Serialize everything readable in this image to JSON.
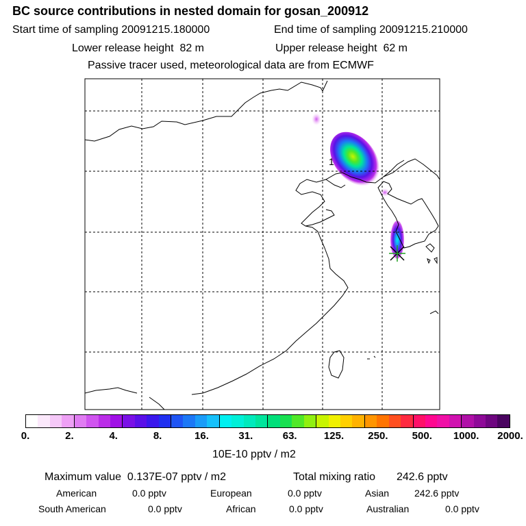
{
  "header": {
    "title": "BC  source contributions in nested domain for gosan_200912",
    "start_label": "Start time of sampling",
    "start_value": "20091215.180000",
    "end_label": "End time of sampling",
    "end_value": "20091215.210000",
    "lower_label": "Lower release height",
    "lower_value": "82 m",
    "upper_label": "Upper release height",
    "upper_value": "62 m",
    "note": "Passive tracer used, meteorological data are from ECMWF"
  },
  "map": {
    "label": "1",
    "receptor": "gosan-receptor-marker",
    "colors": {
      "land_outline": "#000000",
      "grid": "#000000"
    }
  },
  "colorbar": {
    "ticks": [
      "0.",
      "2.",
      "4.",
      "8.",
      "16.",
      "31.",
      "63.",
      "125.",
      "250.",
      "500.",
      "1000.",
      "2000."
    ],
    "colors": [
      "#ffffff",
      "#fbe8fb",
      "#f5c8f8",
      "#eea0f5",
      "#e07cf2",
      "#d055ef",
      "#bb2ee8",
      "#a010e6",
      "#7a10e6",
      "#5a10e8",
      "#3a18ec",
      "#2030f0",
      "#1f55f4",
      "#1c78f6",
      "#1a9cf8",
      "#16c0fa",
      "#00f0f0",
      "#00f0d8",
      "#00eabc",
      "#00e59c",
      "#00df7a",
      "#18e050",
      "#50e828",
      "#90f010",
      "#c8f400",
      "#f0f000",
      "#ffd000",
      "#ffb200",
      "#ff9500",
      "#ff7400",
      "#ff4f20",
      "#ff2a40",
      "#ff1068",
      "#ff0890",
      "#f010a6",
      "#d012b0",
      "#b010a8",
      "#8e0a98",
      "#6e0680",
      "#4a0460"
    ],
    "units": "10E-10 pptv / m2"
  },
  "stats": {
    "max_label": "Maximum value",
    "max_value": "0.137E-07 pptv / m2",
    "total_label": "Total mixing ratio",
    "total_value": "242.6 pptv",
    "american_label": "American",
    "american_value": "0.0 pptv",
    "european_label": "European",
    "european_value": "0.0 pptv",
    "asian_label": "Asian",
    "asian_value": "242.6 pptv",
    "south_american_label": "South American",
    "south_american_value": "0.0 pptv",
    "african_label": "African",
    "african_value": "0.0 pptv",
    "australian_label": "Australian",
    "australian_value": "0.0 pptv"
  }
}
